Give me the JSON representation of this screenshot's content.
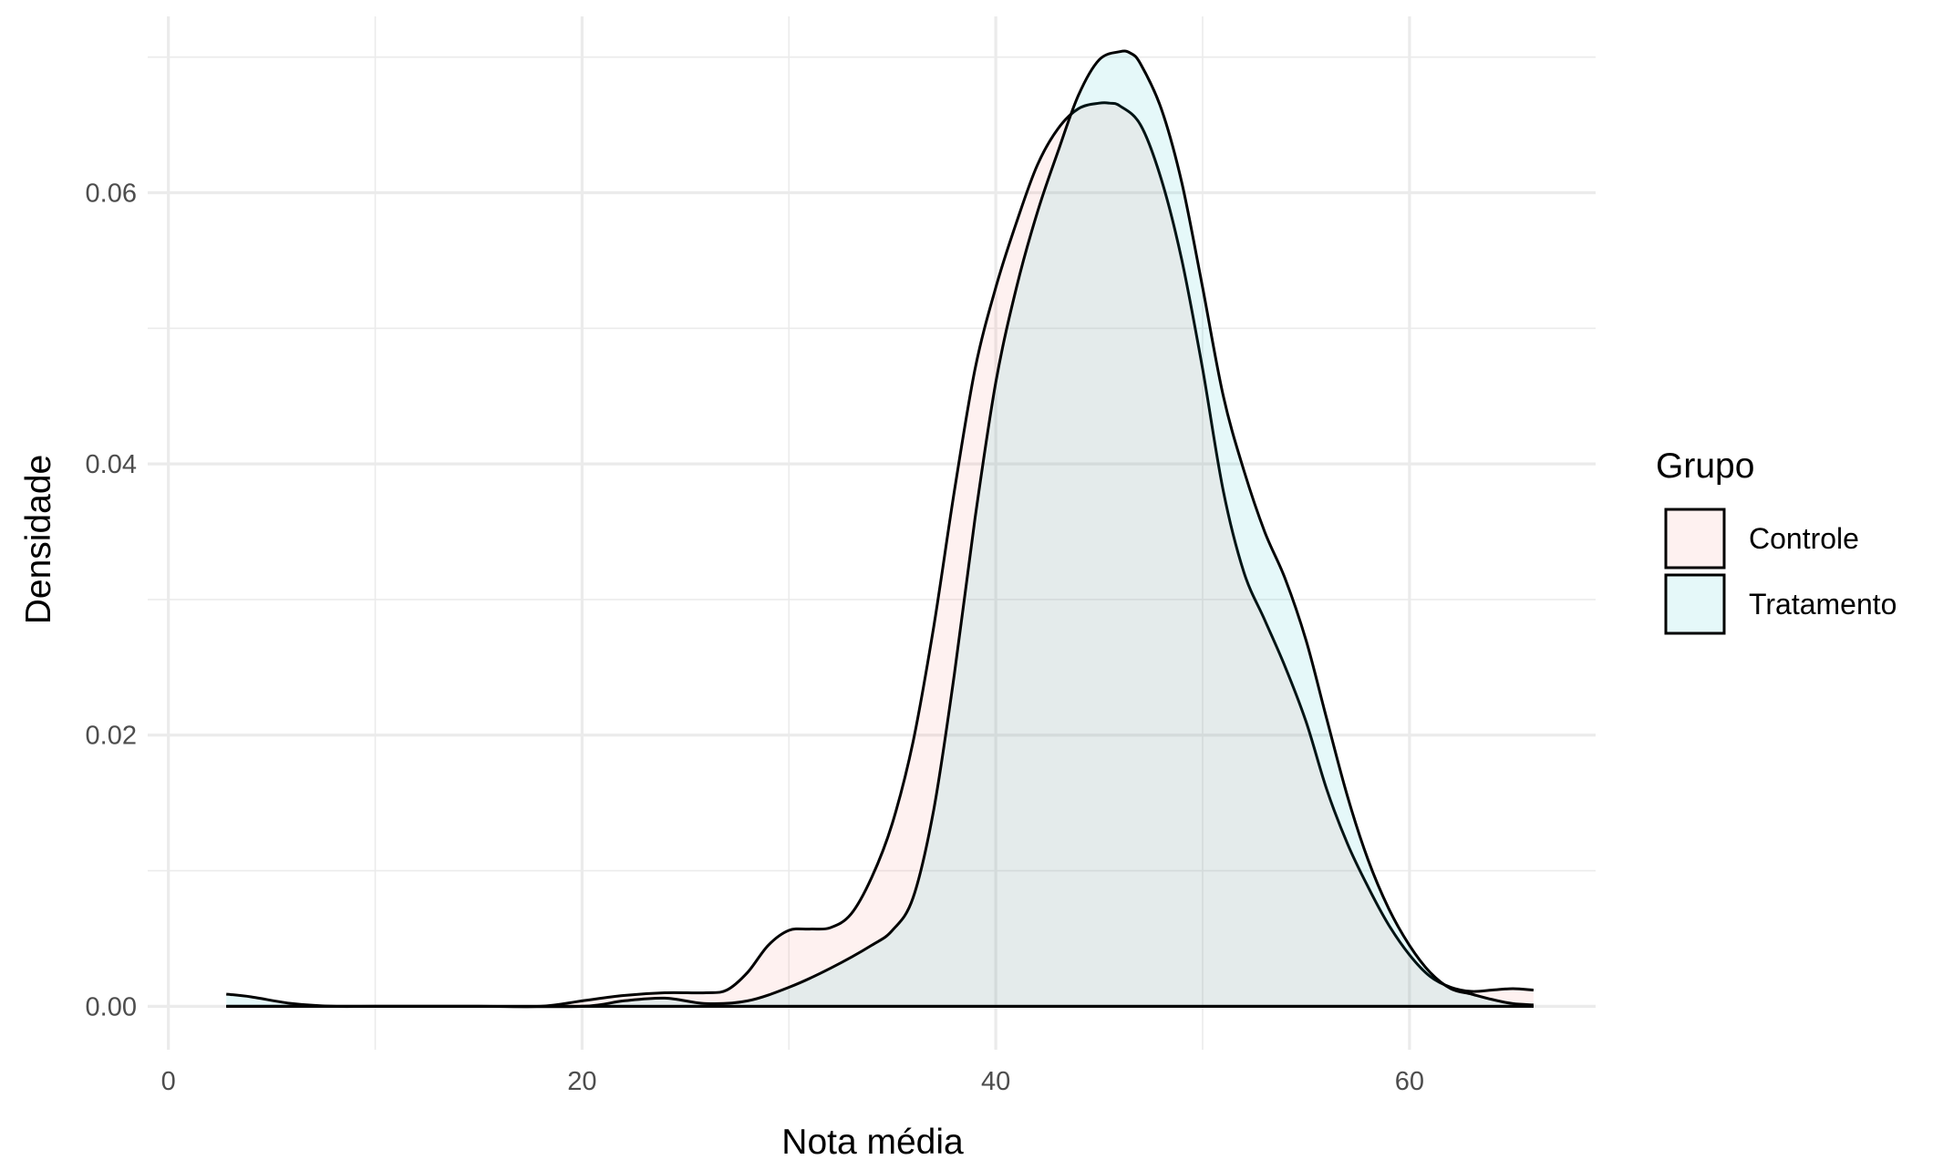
{
  "chart_data": {
    "type": "area",
    "title": "",
    "xlabel": "Nota média",
    "ylabel": "Densidade",
    "xlim": [
      -1,
      69
    ],
    "ylim": [
      -0.0032,
      0.073
    ],
    "x_ticks": [
      0,
      20,
      40,
      60
    ],
    "x_tick_labels": [
      "0",
      "20",
      "40",
      "60"
    ],
    "y_ticks": [
      0.0,
      0.02,
      0.04,
      0.06
    ],
    "y_tick_labels": [
      "0.00",
      "0.02",
      "0.04",
      "0.06"
    ],
    "grid": true,
    "legend": {
      "title": "Grupo",
      "position": "right"
    },
    "series": [
      {
        "name": "Controle",
        "fill": "#F8766D",
        "fill_opacity": 0.1,
        "x": [
          2.8,
          5,
          7,
          10,
          15,
          18,
          20,
          22,
          24,
          26,
          27,
          28,
          29,
          30,
          31,
          32,
          33,
          34,
          35,
          36,
          37,
          38,
          39,
          40,
          41,
          42,
          43,
          44,
          45,
          45.5,
          46,
          47,
          48,
          49,
          50,
          51,
          52,
          53,
          54,
          55,
          56,
          57,
          58,
          59,
          60,
          61,
          62,
          63,
          64,
          65,
          66
        ],
        "y": [
          0.0,
          0.0,
          0.0,
          0.0,
          0.0,
          0.0,
          0.0004,
          0.0008,
          0.001,
          0.001,
          0.0012,
          0.0025,
          0.0045,
          0.0056,
          0.0057,
          0.0058,
          0.0068,
          0.0095,
          0.0135,
          0.0195,
          0.028,
          0.038,
          0.047,
          0.053,
          0.0578,
          0.062,
          0.0647,
          0.0662,
          0.0666,
          0.0666,
          0.0664,
          0.065,
          0.061,
          0.055,
          0.047,
          0.038,
          0.032,
          0.0285,
          0.025,
          0.021,
          0.016,
          0.012,
          0.0088,
          0.006,
          0.0038,
          0.0022,
          0.0014,
          0.0011,
          0.0012,
          0.0013,
          0.0012
        ]
      },
      {
        "name": "Tratamento",
        "fill": "#00BFC4",
        "fill_opacity": 0.1,
        "x": [
          2.8,
          4,
          6,
          8,
          10,
          15,
          20,
          22,
          24,
          26,
          28,
          30,
          32,
          34,
          35,
          36,
          37,
          38,
          39,
          40,
          41,
          42,
          43,
          44,
          45,
          46,
          46.5,
          47,
          48,
          49,
          50,
          51,
          52,
          53,
          54,
          55,
          56,
          57,
          58,
          59,
          60,
          61,
          62,
          63,
          64,
          65,
          66
        ],
        "y": [
          0.0009,
          0.0007,
          0.0002,
          0.0,
          0.0,
          0.0,
          0.0,
          0.0004,
          0.0006,
          0.0002,
          0.0004,
          0.0014,
          0.0028,
          0.0045,
          0.0056,
          0.008,
          0.0145,
          0.0245,
          0.036,
          0.046,
          0.053,
          0.0585,
          0.063,
          0.0672,
          0.0698,
          0.0704,
          0.0703,
          0.0695,
          0.0662,
          0.0607,
          0.053,
          0.045,
          0.0395,
          0.035,
          0.0315,
          0.027,
          0.0212,
          0.0155,
          0.0108,
          0.0072,
          0.0045,
          0.0025,
          0.0013,
          0.0009,
          0.0005,
          0.0002,
          0.0001
        ]
      }
    ]
  }
}
